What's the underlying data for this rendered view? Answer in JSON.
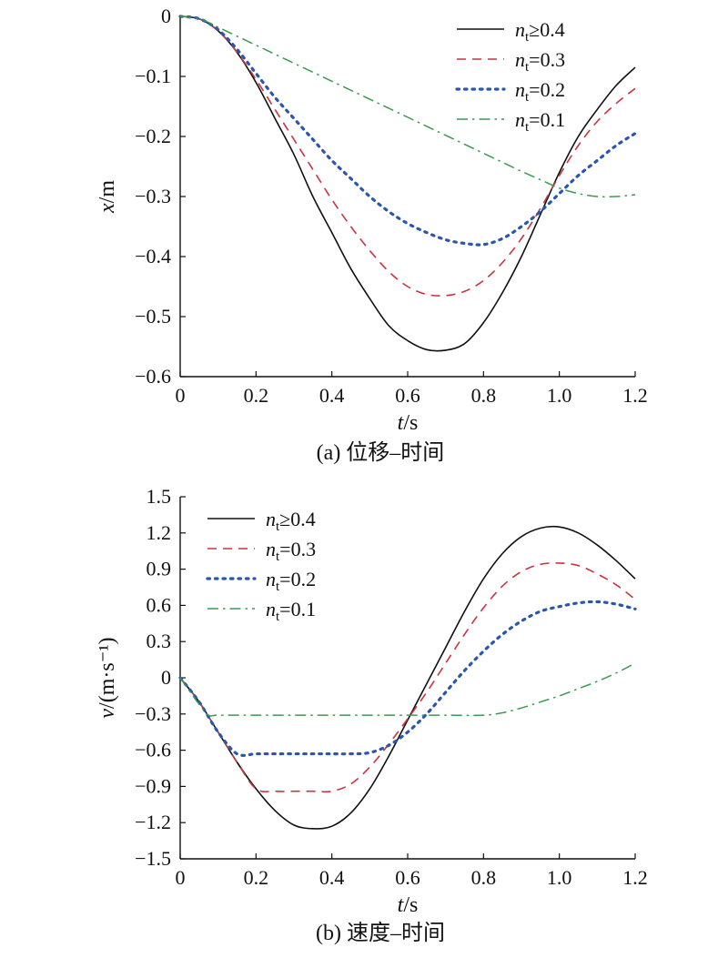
{
  "charts": [
    {
      "type": "line",
      "xlabel": "t/s",
      "ylabel": "x/m",
      "caption": "(a) 位移–时间",
      "xlim": [
        0,
        1.2
      ],
      "ylim": [
        -0.6,
        0
      ],
      "xticks": [
        "0",
        "0.2",
        "0.4",
        "0.6",
        "0.8",
        "1.0",
        "1.2"
      ],
      "yticks": [
        "0",
        "−0.1",
        "−0.2",
        "−0.3",
        "−0.4",
        "−0.5",
        "−0.6"
      ],
      "legend_position": "top-right",
      "series": [
        {
          "label_main": "n",
          "label_sub": "t",
          "label_rest": "≥0.4",
          "color": "#111111",
          "style": "solid",
          "x": [
            0,
            0.05,
            0.1,
            0.15,
            0.2,
            0.25,
            0.3,
            0.35,
            0.4,
            0.45,
            0.5,
            0.55,
            0.6,
            0.65,
            0.7,
            0.75,
            0.8,
            0.85,
            0.9,
            0.95,
            1.0,
            1.05,
            1.1,
            1.15,
            1.2
          ],
          "y": [
            0,
            -0.004,
            -0.024,
            -0.06,
            -0.11,
            -0.17,
            -0.23,
            -0.3,
            -0.36,
            -0.42,
            -0.47,
            -0.515,
            -0.54,
            -0.555,
            -0.556,
            -0.545,
            -0.51,
            -0.46,
            -0.4,
            -0.33,
            -0.26,
            -0.2,
            -0.155,
            -0.115,
            -0.085
          ]
        },
        {
          "label_main": "n",
          "label_sub": "t",
          "label_rest": "=0.3",
          "color": "#cc3340",
          "style": "dashed",
          "x": [
            0,
            0.05,
            0.1,
            0.15,
            0.2,
            0.25,
            0.3,
            0.35,
            0.4,
            0.45,
            0.5,
            0.55,
            0.6,
            0.65,
            0.7,
            0.75,
            0.8,
            0.85,
            0.9,
            0.95,
            1.0,
            1.05,
            1.1,
            1.15,
            1.2
          ],
          "y": [
            0,
            -0.004,
            -0.024,
            -0.06,
            -0.105,
            -0.155,
            -0.205,
            -0.255,
            -0.305,
            -0.35,
            -0.39,
            -0.425,
            -0.45,
            -0.463,
            -0.465,
            -0.458,
            -0.44,
            -0.41,
            -0.37,
            -0.32,
            -0.265,
            -0.215,
            -0.175,
            -0.145,
            -0.12
          ]
        },
        {
          "label_main": "n",
          "label_sub": "t",
          "label_rest": "=0.2",
          "color": "#2a55b0",
          "style": "dotted",
          "x": [
            0,
            0.05,
            0.1,
            0.15,
            0.2,
            0.25,
            0.3,
            0.35,
            0.4,
            0.45,
            0.5,
            0.55,
            0.6,
            0.65,
            0.7,
            0.75,
            0.8,
            0.85,
            0.9,
            0.95,
            1.0,
            1.05,
            1.1,
            1.15,
            1.2
          ],
          "y": [
            0,
            -0.004,
            -0.022,
            -0.055,
            -0.095,
            -0.135,
            -0.17,
            -0.205,
            -0.24,
            -0.27,
            -0.3,
            -0.325,
            -0.345,
            -0.36,
            -0.372,
            -0.378,
            -0.38,
            -0.37,
            -0.35,
            -0.325,
            -0.295,
            -0.265,
            -0.24,
            -0.215,
            -0.195
          ]
        },
        {
          "label_main": "n",
          "label_sub": "t",
          "label_rest": "=0.1",
          "color": "#3a9a50",
          "style": "dashdot",
          "x": [
            0,
            0.05,
            0.1,
            0.15,
            0.2,
            0.25,
            0.3,
            0.35,
            0.4,
            0.45,
            0.5,
            0.55,
            0.6,
            0.65,
            0.7,
            0.75,
            0.8,
            0.85,
            0.9,
            0.95,
            1.0,
            1.05,
            1.1,
            1.15,
            1.2
          ],
          "y": [
            0,
            -0.004,
            -0.018,
            -0.033,
            -0.048,
            -0.063,
            -0.078,
            -0.093,
            -0.108,
            -0.123,
            -0.138,
            -0.153,
            -0.168,
            -0.183,
            -0.198,
            -0.213,
            -0.228,
            -0.243,
            -0.258,
            -0.272,
            -0.286,
            -0.295,
            -0.3,
            -0.3,
            -0.297
          ]
        }
      ]
    },
    {
      "type": "line",
      "xlabel": "t/s",
      "ylabel": "v/(m·s⁻¹)",
      "caption": "(b) 速度–时间",
      "xlim": [
        0,
        1.2
      ],
      "ylim": [
        -1.5,
        1.5
      ],
      "xticks": [
        "0",
        "0.2",
        "0.4",
        "0.6",
        "0.8",
        "1.0",
        "1.2"
      ],
      "yticks": [
        "1.5",
        "1.2",
        "0.9",
        "0.6",
        "0.3",
        "0",
        "−0.3",
        "−0.6",
        "−0.9",
        "−1.2",
        "−1.5"
      ],
      "legend_position": "top-left",
      "series": [
        {
          "label_main": "n",
          "label_sub": "t",
          "label_rest": "≥0.4",
          "color": "#111111",
          "style": "solid",
          "x": [
            0,
            0.05,
            0.1,
            0.15,
            0.2,
            0.25,
            0.3,
            0.35,
            0.4,
            0.45,
            0.5,
            0.55,
            0.6,
            0.65,
            0.7,
            0.75,
            0.8,
            0.85,
            0.9,
            0.95,
            1.0,
            1.05,
            1.1,
            1.15,
            1.2
          ],
          "y": [
            0,
            -0.2,
            -0.45,
            -0.7,
            -0.92,
            -1.1,
            -1.22,
            -1.25,
            -1.23,
            -1.12,
            -0.92,
            -0.65,
            -0.35,
            -0.05,
            0.25,
            0.55,
            0.82,
            1.03,
            1.17,
            1.24,
            1.25,
            1.2,
            1.1,
            0.97,
            0.82
          ]
        },
        {
          "label_main": "n",
          "label_sub": "t",
          "label_rest": "=0.3",
          "color": "#cc3340",
          "style": "dashed",
          "x": [
            0,
            0.05,
            0.1,
            0.15,
            0.2,
            0.25,
            0.3,
            0.35,
            0.4,
            0.45,
            0.5,
            0.55,
            0.6,
            0.65,
            0.7,
            0.75,
            0.8,
            0.85,
            0.9,
            0.95,
            1.0,
            1.05,
            1.1,
            1.15,
            1.2
          ],
          "y": [
            0,
            -0.2,
            -0.45,
            -0.7,
            -0.92,
            -0.94,
            -0.94,
            -0.94,
            -0.94,
            -0.88,
            -0.74,
            -0.55,
            -0.34,
            -0.12,
            0.12,
            0.36,
            0.58,
            0.76,
            0.88,
            0.94,
            0.95,
            0.93,
            0.86,
            0.77,
            0.65
          ]
        },
        {
          "label_main": "n",
          "label_sub": "t",
          "label_rest": "=0.2",
          "color": "#2a55b0",
          "style": "dotted",
          "x": [
            0,
            0.05,
            0.1,
            0.15,
            0.2,
            0.25,
            0.3,
            0.35,
            0.4,
            0.45,
            0.5,
            0.55,
            0.6,
            0.65,
            0.7,
            0.75,
            0.8,
            0.85,
            0.9,
            0.95,
            1.0,
            1.05,
            1.1,
            1.15,
            1.2
          ],
          "y": [
            0,
            -0.2,
            -0.45,
            -0.63,
            -0.63,
            -0.63,
            -0.63,
            -0.63,
            -0.63,
            -0.63,
            -0.62,
            -0.56,
            -0.45,
            -0.3,
            -0.12,
            0.06,
            0.22,
            0.36,
            0.47,
            0.55,
            0.59,
            0.62,
            0.63,
            0.61,
            0.57
          ]
        },
        {
          "label_main": "n",
          "label_sub": "t",
          "label_rest": "=0.1",
          "color": "#3a9a50",
          "style": "dashdot",
          "x": [
            0,
            0.05,
            0.075,
            0.1,
            0.2,
            0.3,
            0.4,
            0.5,
            0.6,
            0.7,
            0.8,
            0.85,
            0.9,
            0.95,
            1.0,
            1.05,
            1.1,
            1.15,
            1.2
          ],
          "y": [
            0,
            -0.22,
            -0.31,
            -0.31,
            -0.31,
            -0.31,
            -0.31,
            -0.31,
            -0.31,
            -0.31,
            -0.31,
            -0.29,
            -0.25,
            -0.2,
            -0.15,
            -0.09,
            -0.03,
            0.04,
            0.12
          ]
        }
      ]
    }
  ]
}
